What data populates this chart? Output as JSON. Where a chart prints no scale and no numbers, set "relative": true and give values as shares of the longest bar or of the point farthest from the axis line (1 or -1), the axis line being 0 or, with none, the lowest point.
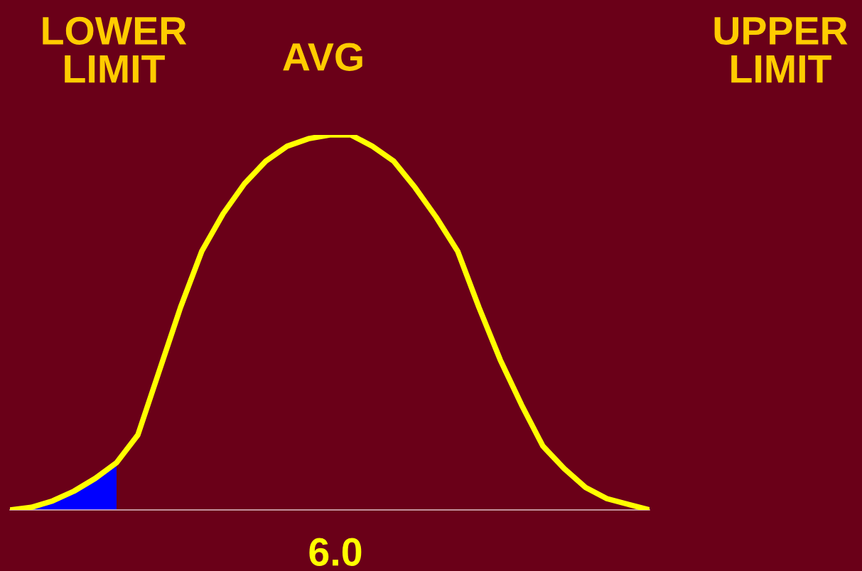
{
  "chart_data": {
    "type": "line",
    "relative": true,
    "categories": [
      null,
      null,
      null,
      null,
      null,
      null,
      null,
      null,
      null,
      null,
      null,
      null,
      null,
      null,
      null,
      null,
      null,
      null,
      null,
      null,
      null,
      null,
      null,
      null,
      null,
      null,
      null,
      null,
      null,
      null,
      null
    ],
    "series": [
      {
        "type": "area",
        "color": "#0000ff",
        "values": [
          0,
          0.007,
          0.024,
          0.05,
          0.084,
          0.126,
          null,
          null,
          null,
          null,
          null,
          null,
          null,
          null,
          null,
          null,
          null,
          null,
          null,
          null,
          null,
          null,
          null,
          null,
          null,
          null,
          null,
          null,
          null,
          null,
          null
        ]
      },
      {
        "color": "#ffff00",
        "values": [
          0,
          0.007,
          0.024,
          0.05,
          0.084,
          0.126,
          0.2,
          0.37,
          0.54,
          0.69,
          0.79,
          0.87,
          0.93,
          0.97,
          0.99,
          1,
          1,
          0.97,
          0.93,
          0.86,
          0.78,
          0.69,
          0.54,
          0.4,
          0.28,
          0.17,
          0.11,
          0.06,
          0.03,
          0.015,
          0
        ]
      }
    ],
    "annotations": [
      "LOWER\nLIMIT",
      "AVG",
      "UPPER\nLIMIT",
      "6.0"
    ]
  }
}
